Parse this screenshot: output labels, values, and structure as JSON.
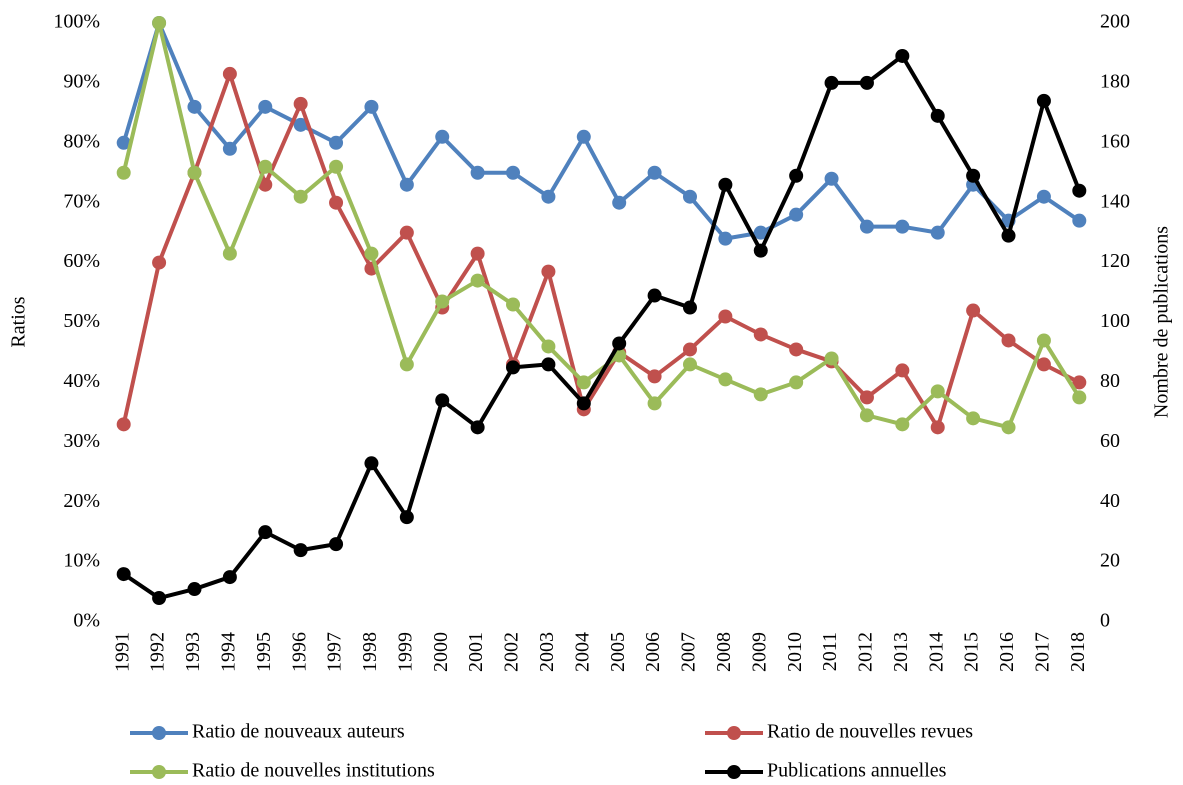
{
  "chart_data": {
    "type": "line",
    "categories": [
      "1991",
      "1992",
      "1993",
      "1994",
      "1995",
      "1996",
      "1997",
      "1998",
      "1999",
      "2000",
      "2001",
      "2002",
      "2003",
      "2004",
      "2005",
      "2006",
      "2007",
      "2008",
      "2009",
      "2010",
      "2011",
      "2012",
      "2013",
      "2014",
      "2015",
      "2016",
      "2017",
      "2018"
    ],
    "y_label": "Ratios",
    "y2_label": "Nombre de publications",
    "ylim": [
      0,
      100
    ],
    "yticks": [
      {
        "value": 0,
        "label": "0%"
      },
      {
        "value": 10,
        "label": "10%"
      },
      {
        "value": 20,
        "label": "20%"
      },
      {
        "value": 30,
        "label": "30%"
      },
      {
        "value": 40,
        "label": "40%"
      },
      {
        "value": 50,
        "label": "50%"
      },
      {
        "value": 60,
        "label": "60%"
      },
      {
        "value": 70,
        "label": "70%"
      },
      {
        "value": 80,
        "label": "80%"
      },
      {
        "value": 90,
        "label": "90%"
      },
      {
        "value": 100,
        "label": "100%"
      }
    ],
    "y2lim": [
      0,
      200
    ],
    "y2ticks": [
      0,
      20,
      40,
      60,
      80,
      100,
      120,
      140,
      160,
      180,
      200
    ],
    "grid": false,
    "legend": "bottom",
    "series": [
      {
        "name": "Ratio de nouveaux auteurs",
        "color": "#4f81bd",
        "values": [
          80,
          100,
          86,
          79,
          86,
          83,
          80,
          86,
          73,
          81,
          75,
          75,
          71,
          81,
          70,
          75,
          71,
          64,
          65,
          68,
          74,
          66,
          66,
          65,
          73,
          67,
          71,
          67
        ]
      },
      {
        "name": "Ratio de nouvelles revues",
        "color": "#c0504d",
        "values": [
          33,
          60,
          75,
          91.5,
          73,
          86.5,
          70,
          59,
          65,
          52.5,
          61.5,
          43,
          58.5,
          35.5,
          45,
          41,
          45.5,
          51,
          48,
          45.5,
          43.5,
          37.5,
          42,
          32.5,
          52,
          47,
          43,
          40
        ]
      },
      {
        "name": "Ratio de nouvelles institutions",
        "color": "#9bbb59",
        "values": [
          75,
          100,
          75,
          61.5,
          76,
          71,
          76,
          61.5,
          43,
          53.5,
          57,
          53,
          46,
          40,
          44.5,
          36.5,
          43,
          40.5,
          38,
          40,
          44,
          34.5,
          33,
          38.5,
          34,
          32.5,
          47,
          37.5
        ]
      },
      {
        "name": "Publications annuelles",
        "color": "#000000",
        "axis": "y2",
        "values": [
          16,
          8,
          11,
          15,
          30,
          24,
          26,
          53,
          35,
          74,
          65,
          85,
          86,
          73,
          93,
          109,
          105,
          146,
          124,
          149,
          180,
          180,
          189,
          169,
          149,
          129,
          174,
          144
        ]
      }
    ]
  }
}
